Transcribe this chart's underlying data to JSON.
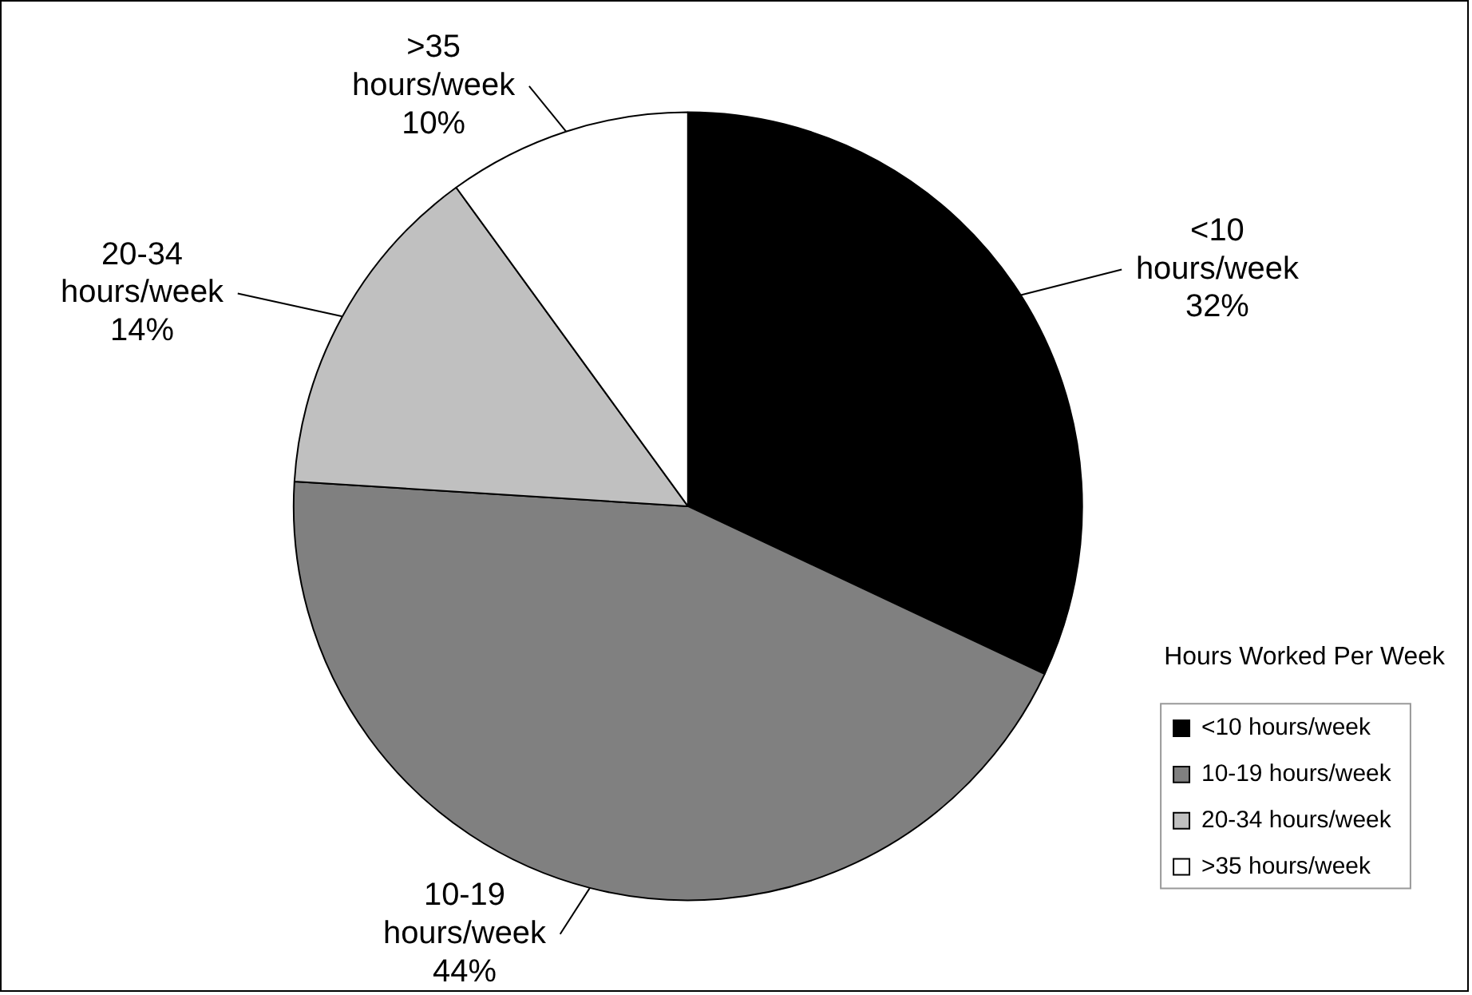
{
  "chart_data": {
    "type": "pie",
    "categories": [
      "<10 hours/week",
      "10-19 hours/week",
      "20-34 hours/week",
      ">35 hours/week"
    ],
    "values": [
      32,
      44,
      14,
      10
    ],
    "value_labels": [
      "32%",
      "44%",
      "14%",
      "10%"
    ],
    "colors": [
      "#000000",
      "#808080",
      "#c0c0c0",
      "#ffffff"
    ],
    "legend_title": "Hours Worked Per Week",
    "legend": "bottom right"
  }
}
